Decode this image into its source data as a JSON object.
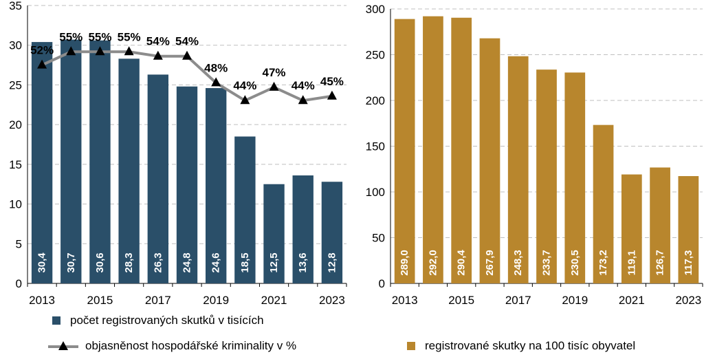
{
  "chart_data": [
    {
      "type": "bar+line",
      "categories": [
        "2013",
        "2014",
        "2015",
        "2016",
        "2017",
        "2018",
        "2019",
        "2020",
        "2021",
        "2022",
        "2023"
      ],
      "x_tick_labels": [
        "2013",
        "2015",
        "2017",
        "2019",
        "2021",
        "2023"
      ],
      "ylim": [
        0,
        35
      ],
      "yticks": [
        "0",
        "5",
        "10",
        "15",
        "20",
        "25",
        "30",
        "35"
      ],
      "grid": "horizontal dashed",
      "series": [
        {
          "name": "počet registrovaných skutků v tisících",
          "type": "bar",
          "color": "#2a4f69",
          "values": [
            30.4,
            30.7,
            30.6,
            28.3,
            26.3,
            24.8,
            24.6,
            18.5,
            12.5,
            13.6,
            12.8
          ],
          "labels": [
            "30,4",
            "30,7",
            "30,6",
            "28,3",
            "26,3",
            "24,8",
            "24,6",
            "18,5",
            "12,5",
            "13,6",
            "12,8"
          ]
        },
        {
          "name": "objasněnost hospodářské kriminality v %",
          "type": "line",
          "color": "#8c8c8c",
          "marker": "triangle",
          "values": [
            52,
            55,
            55,
            55,
            54,
            54,
            48,
            44,
            47,
            44,
            45
          ],
          "labels": [
            "52%",
            "55%",
            "55%",
            "55%",
            "54%",
            "54%",
            "48%",
            "44%",
            "47%",
            "44%",
            "45%"
          ]
        }
      ]
    },
    {
      "type": "bar",
      "categories": [
        "2013",
        "2014",
        "2015",
        "2016",
        "2017",
        "2018",
        "2019",
        "2020",
        "2021",
        "2022",
        "2023"
      ],
      "x_tick_labels": [
        "2013",
        "2015",
        "2017",
        "2019",
        "2021",
        "2023"
      ],
      "ylim": [
        0,
        300
      ],
      "yticks": [
        "0",
        "50",
        "100",
        "150",
        "200",
        "250",
        "300"
      ],
      "grid": "horizontal dashed",
      "series": [
        {
          "name": "registrované skutky na 100 tisíc obyvatel",
          "color": "#b8862d",
          "values": [
            289.0,
            292.0,
            290.4,
            267.9,
            248.3,
            233.7,
            230.5,
            173.2,
            119.1,
            126.7,
            117.3
          ],
          "labels": [
            "289,0",
            "292,0",
            "290,4",
            "267,9",
            "248,3",
            "233,7",
            "230,5",
            "173,2",
            "119,1",
            "126,7",
            "117,3"
          ]
        }
      ]
    }
  ]
}
